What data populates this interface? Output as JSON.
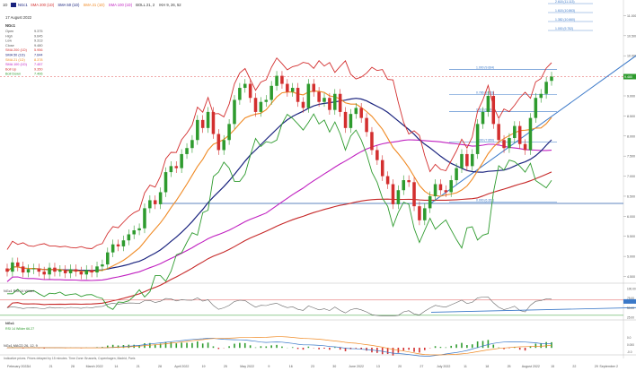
{
  "toolbar": {
    "timeframe": "1D",
    "symbol": "NGc1",
    "studies": [
      {
        "label": "SMA 200 (1D)",
        "color": "#d32f2f"
      },
      {
        "label": "SMA 50 (1D)",
        "color": "#1a237e"
      },
      {
        "label": "SMA 21 (1D)",
        "color": "#f08a24"
      },
      {
        "label": "SMA 100 (1D)",
        "color": "#c020c0"
      },
      {
        "label": "BOLL 21, 2",
        "color": "#333333"
      },
      {
        "label": "IKH 9, 26, 52",
        "color": "#333333"
      }
    ]
  },
  "info": {
    "date": "17 August 2022",
    "symbol": "NGc1",
    "rows": [
      {
        "label": "Open",
        "value": "9.375",
        "color": "#555555"
      },
      {
        "label": "High",
        "value": "9.645",
        "color": "#555555"
      },
      {
        "label": "Low",
        "value": "9.313",
        "color": "#555555"
      },
      {
        "label": "Close",
        "value": "9.480",
        "color": "#555555"
      },
      {
        "label": "SMA 200 (1D)",
        "value": "5.956",
        "color": "#d32f2f"
      },
      {
        "label": "SMA 50 (1D)",
        "value": "7.644",
        "color": "#1a237e"
      },
      {
        "label": "SMA 21 (1D)",
        "value": "8.378",
        "color": "#f08a24"
      },
      {
        "label": "SMA 100 (1D)",
        "value": "7.457",
        "color": "#c020c0"
      },
      {
        "label": "Boll Up",
        "value": "9.350",
        "color": "#d32f2f"
      },
      {
        "label": "Boll Down",
        "value": "7.406",
        "color": "#2e9b2e"
      }
    ]
  },
  "chart_data": {
    "type": "candlestick",
    "price_axis": {
      "ticks": [
        "11.000",
        "10.500",
        "10.000",
        "9.500",
        "9.000",
        "8.500",
        "8.000",
        "7.500",
        "7.000",
        "6.500",
        "6.000",
        "5.500",
        "5.000",
        "4.500"
      ],
      "ylim": [
        4.4,
        11.3
      ],
      "last_price": "9.480"
    },
    "date_axis": {
      "labels": [
        "February 2022",
        "14",
        "21",
        "28",
        "March 2022",
        "14",
        "21",
        "28",
        "April 2022",
        "19",
        "25",
        "May 2022",
        "9",
        "16",
        "23",
        "30",
        "June 2022",
        "13",
        "20",
        "27",
        "July 2022",
        "11",
        "18",
        "25",
        "August 2022",
        "15",
        "22",
        "29",
        "September 2"
      ]
    },
    "candles_close": [
      4.62,
      4.85,
      4.75,
      4.6,
      4.68,
      4.7,
      4.62,
      4.55,
      4.72,
      4.62,
      4.66,
      4.58,
      4.68,
      4.62,
      4.55,
      4.66,
      4.6,
      4.75,
      4.8,
      5.1,
      5.3,
      5.25,
      5.4,
      5.55,
      5.65,
      5.7,
      6.2,
      6.4,
      6.3,
      6.6,
      7.1,
      7.25,
      7.2,
      7.55,
      7.7,
      7.9,
      8.4,
      8.2,
      8.6,
      8.05,
      7.65,
      7.9,
      8.3,
      8.9,
      9.2,
      9.3,
      8.95,
      8.6,
      8.85,
      8.9,
      9.25,
      9.5,
      9.3,
      9.1,
      9.2,
      8.85,
      8.7,
      9.3,
      9.1,
      8.85,
      8.95,
      8.65,
      9.05,
      8.6,
      8.2,
      8.55,
      8.7,
      8.45,
      8.1,
      7.65,
      7.4,
      7.0,
      6.8,
      6.3,
      6.65,
      6.9,
      6.85,
      6.25,
      5.9,
      6.2,
      6.5,
      6.8,
      6.65,
      6.6,
      6.9,
      7.2,
      7.55,
      7.25,
      7.55,
      8.3,
      8.6,
      9.0,
      8.3,
      7.9,
      7.7,
      7.95,
      8.25,
      7.8,
      7.65,
      8.45,
      8.95,
      9.05,
      9.35,
      9.48
    ],
    "candles_open": [
      4.7,
      4.62,
      4.85,
      4.75,
      4.6,
      4.68,
      4.7,
      4.62,
      4.55,
      4.72,
      4.62,
      4.66,
      4.58,
      4.68,
      4.62,
      4.55,
      4.66,
      4.6,
      4.75,
      4.8,
      5.1,
      5.3,
      5.25,
      5.4,
      5.55,
      5.65,
      5.7,
      6.2,
      6.4,
      6.3,
      6.6,
      7.1,
      7.25,
      7.2,
      7.55,
      7.7,
      7.9,
      8.4,
      8.2,
      8.6,
      8.05,
      7.65,
      7.9,
      8.3,
      8.9,
      9.2,
      9.3,
      8.95,
      8.6,
      8.85,
      8.9,
      9.25,
      9.5,
      9.3,
      9.1,
      9.2,
      8.85,
      8.7,
      9.3,
      9.1,
      8.85,
      8.95,
      8.65,
      9.05,
      8.6,
      8.2,
      8.55,
      8.7,
      8.45,
      8.1,
      7.65,
      7.4,
      7.0,
      6.8,
      6.3,
      6.65,
      6.9,
      6.85,
      6.25,
      5.9,
      6.2,
      6.5,
      6.8,
      6.65,
      6.6,
      6.9,
      7.2,
      7.55,
      7.25,
      7.55,
      8.3,
      8.6,
      9.0,
      8.3,
      7.9,
      7.7,
      7.95,
      8.25,
      7.8,
      7.65,
      8.45,
      8.95,
      9.05,
      9.375
    ],
    "fib_levels": [
      {
        "label": "1.000 (9.664)",
        "value": 9.664
      },
      {
        "label": "0.786 (9.028)",
        "value": 9.028
      },
      {
        "label": "0.618 (8.604)",
        "value": 8.604
      },
      {
        "label": "0.000 (7.850)",
        "value": 7.85
      },
      {
        "label": "0.000 (6.351)",
        "value": 6.351
      }
    ],
    "fib_levels_upper": [
      "2.618 (11.113)",
      "1.618 (10.863)",
      "1.382 (10.660)",
      "1.000 (9.752)"
    ],
    "support_level": 6.32,
    "rsi_panel": {
      "title": "NGc1 RSI 14 Wilder",
      "subtitle_symbol": "NGc1",
      "subtitle": "RSI 14 Wilder 66.27",
      "ticks": [
        "100.00",
        "75.00",
        "50.00",
        "25.00"
      ]
    },
    "macd_panel": {
      "title": "NGc1 MACD 26, 12, 9",
      "ticks": [
        "0.0",
        "0.000",
        "-0.0"
      ]
    },
    "footer": "Indicative prices. Prices delayed by 15 minutes. Time Zone: Brussels, Copenhagen, Madrid, Paris"
  }
}
